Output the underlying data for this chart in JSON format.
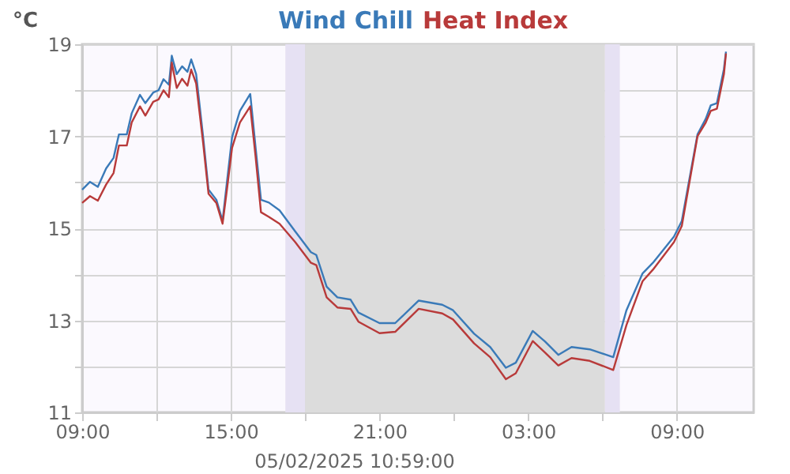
{
  "chart_data": {
    "type": "line",
    "ylabel": "°C",
    "annotations": [
      "05/02/2025 10:59:00"
    ],
    "x": [
      "2025-02-04T09:00",
      "2025-02-04T09:19",
      "2025-02-04T09:38",
      "2025-02-04T09:58",
      "2025-02-04T10:16",
      "2025-02-04T10:29",
      "2025-02-04T10:48",
      "2025-02-04T11:00",
      "2025-02-04T11:20",
      "2025-02-04T11:33",
      "2025-02-04T11:52",
      "2025-02-04T12:05",
      "2025-02-04T12:17",
      "2025-02-04T12:30",
      "2025-02-04T12:37",
      "2025-02-04T12:49",
      "2025-02-04T13:02",
      "2025-02-04T13:15",
      "2025-02-04T13:24",
      "2025-02-04T13:36",
      "2025-02-04T13:53",
      "2025-02-04T14:06",
      "2025-02-04T14:25",
      "2025-02-04T14:40",
      "2025-02-04T14:50",
      "2025-02-04T15:03",
      "2025-02-04T15:22",
      "2025-02-04T15:47",
      "2025-02-04T16:00",
      "2025-02-04T16:13",
      "2025-02-04T16:32",
      "2025-02-04T16:58",
      "2025-02-04T17:36",
      "2025-02-04T18:14",
      "2025-02-04T18:27",
      "2025-02-04T18:52",
      "2025-02-04T19:18",
      "2025-02-04T19:50",
      "2025-02-04T20:09",
      "2025-02-04T21:00",
      "2025-02-04T21:38",
      "2025-02-04T22:35",
      "2025-02-04T23:32",
      "2025-02-04T23:58",
      "2025-02-05T00:49",
      "2025-02-05T01:28",
      "2025-02-05T02:06",
      "2025-02-05T02:30",
      "2025-02-05T03:11",
      "2025-02-05T03:41",
      "2025-02-05T04:13",
      "2025-02-05T04:45",
      "2025-02-05T05:29",
      "2025-02-05T06:26",
      "2025-02-05T06:58",
      "2025-02-05T07:37",
      "2025-02-05T08:02",
      "2025-02-05T08:53",
      "2025-02-05T09:12",
      "2025-02-05T09:50",
      "2025-02-05T10:10",
      "2025-02-05T10:22",
      "2025-02-05T10:37",
      "2025-02-05T10:54",
      "2025-02-05T10:59"
    ],
    "series": [
      {
        "name": "Wind Chill",
        "color": "#3a7ab8",
        "values": [
          15.84,
          16.01,
          15.9,
          16.3,
          16.53,
          17.04,
          17.04,
          17.5,
          17.9,
          17.72,
          17.95,
          18.0,
          18.24,
          18.12,
          18.75,
          18.35,
          18.52,
          18.4,
          18.67,
          18.35,
          16.98,
          15.84,
          15.62,
          15.16,
          15.96,
          16.98,
          17.55,
          17.92,
          16.75,
          15.62,
          15.56,
          15.39,
          14.93,
          14.48,
          14.42,
          13.73,
          13.5,
          13.45,
          13.17,
          12.94,
          12.94,
          13.43,
          13.34,
          13.22,
          12.71,
          12.42,
          11.97,
          12.08,
          12.77,
          12.54,
          12.25,
          12.42,
          12.37,
          12.2,
          13.22,
          14.02,
          14.25,
          14.82,
          15.16,
          17.04,
          17.38,
          17.67,
          17.72,
          18.46,
          18.84
        ]
      },
      {
        "name": "Heat Index",
        "color": "#b83a3a",
        "values": [
          15.55,
          15.7,
          15.6,
          15.95,
          16.2,
          16.8,
          16.8,
          17.3,
          17.65,
          17.45,
          17.75,
          17.8,
          18.0,
          17.85,
          18.6,
          18.05,
          18.25,
          18.1,
          18.45,
          18.15,
          16.85,
          15.75,
          15.55,
          15.1,
          15.8,
          16.75,
          17.3,
          17.65,
          16.55,
          15.35,
          15.25,
          15.1,
          14.7,
          14.25,
          14.2,
          13.5,
          13.28,
          13.25,
          12.97,
          12.72,
          12.75,
          13.25,
          13.15,
          13.02,
          12.5,
          12.2,
          11.72,
          11.85,
          12.55,
          12.3,
          12.02,
          12.18,
          12.12,
          11.92,
          12.9,
          13.85,
          14.1,
          14.7,
          15.05,
          17.0,
          17.3,
          17.55,
          17.6,
          18.35,
          18.8
        ]
      }
    ],
    "xlim": [
      "2025-02-04T09:00",
      "2025-02-05T12:06"
    ],
    "ylim": [
      11,
      19
    ],
    "xticks": [
      {
        "value": "2025-02-04T09:00",
        "label": "09:00"
      },
      {
        "value": "2025-02-04T12:00",
        "label": null
      },
      {
        "value": "2025-02-04T15:00",
        "label": "15:00"
      },
      {
        "value": "2025-02-04T18:00",
        "label": null
      },
      {
        "value": "2025-02-04T21:00",
        "label": "21:00"
      },
      {
        "value": "2025-02-05T00:00",
        "label": null
      },
      {
        "value": "2025-02-05T03:00",
        "label": "03:00"
      },
      {
        "value": "2025-02-05T06:00",
        "label": null
      },
      {
        "value": "2025-02-05T09:00",
        "label": "09:00"
      }
    ],
    "yticks": [
      {
        "value": 11,
        "label": "11"
      },
      {
        "value": 12,
        "label": null
      },
      {
        "value": 13,
        "label": "13"
      },
      {
        "value": 14,
        "label": null
      },
      {
        "value": 15,
        "label": "15"
      },
      {
        "value": 16,
        "label": null
      },
      {
        "value": 17,
        "label": "17"
      },
      {
        "value": 18,
        "label": null
      },
      {
        "value": 19,
        "label": "19"
      }
    ],
    "bands": [
      {
        "axis": "x",
        "from": "2025-02-04T17:12",
        "to": "2025-02-04T18:00",
        "color": "#e6e1f3"
      },
      {
        "axis": "x",
        "from": "2025-02-04T18:00",
        "to": "2025-02-05T06:06",
        "color": "#dcdcdc"
      },
      {
        "axis": "x",
        "from": "2025-02-05T06:06",
        "to": "2025-02-05T06:42",
        "color": "#e6e1f3"
      }
    ],
    "grid": true,
    "legend": "top",
    "line_style": "solid",
    "marker": "none"
  }
}
